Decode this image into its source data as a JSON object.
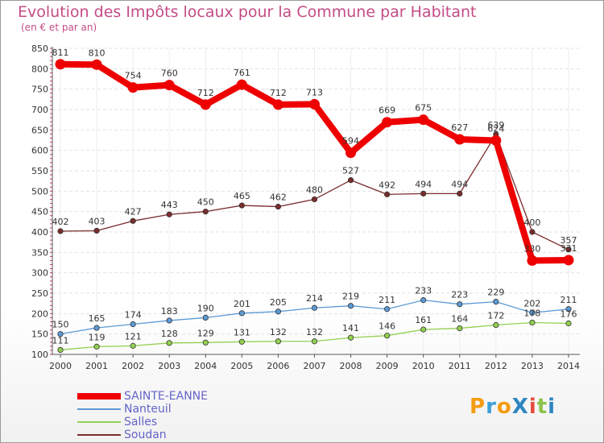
{
  "chart_data": {
    "type": "line",
    "title": "Evolution des Impôts locaux pour la Commune par Habitant",
    "subtitle": "(en € et par an)",
    "xlabel": "",
    "ylabel": "",
    "categories": [
      "2000",
      "2001",
      "2002",
      "2003",
      "2004",
      "2005",
      "2006",
      "2007",
      "2008",
      "2009",
      "2010",
      "2011",
      "2012",
      "2013",
      "2014"
    ],
    "ylim": [
      100,
      850
    ],
    "yticks": [
      100,
      150,
      200,
      250,
      300,
      350,
      400,
      450,
      500,
      550,
      600,
      650,
      700,
      750,
      800,
      850
    ],
    "grid": true,
    "legend_position": "bottom-left",
    "series": [
      {
        "name": "SAINTE-EANNE",
        "color": "#ee0000",
        "values": [
          811,
          810,
          754,
          760,
          712,
          761,
          712,
          713,
          594,
          669,
          675,
          627,
          624,
          330,
          331
        ]
      },
      {
        "name": "Nanteuil",
        "color": "#5b9bd5",
        "values": [
          150,
          165,
          174,
          183,
          190,
          201,
          205,
          214,
          219,
          211,
          233,
          223,
          229,
          202,
          211
        ]
      },
      {
        "name": "Salles",
        "color": "#92d050",
        "values": [
          111,
          119,
          121,
          128,
          129,
          131,
          132,
          132,
          141,
          146,
          161,
          164,
          172,
          178,
          176
        ]
      },
      {
        "name": "Soudan",
        "color": "#7b2c2c",
        "values": [
          402,
          403,
          427,
          443,
          450,
          465,
          462,
          480,
          527,
          492,
          494,
          494,
          639,
          400,
          357
        ]
      }
    ]
  },
  "logo": {
    "text": "ProXiti",
    "colors": [
      "#f39c12",
      "#3aa0d8",
      "#f39c12",
      "#2e86c1",
      "#e74c3c",
      "#8bc34a",
      "#2e86c1"
    ]
  }
}
